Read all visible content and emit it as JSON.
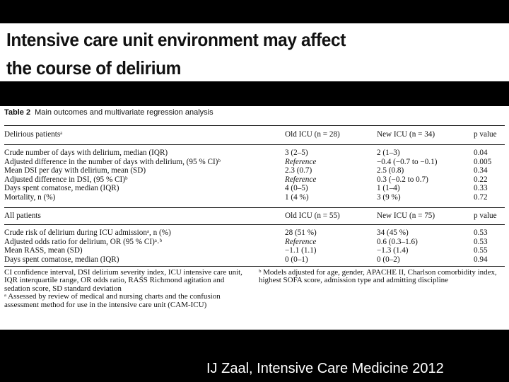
{
  "slide": {
    "title_line1": "Intensive care unit environment may affect",
    "title_line2": "the course of delirium",
    "citation": "IJ Zaal, Intensive Care Medicine 2012"
  },
  "table": {
    "caption_label": "Table 2",
    "caption_text": "Main outcomes and multivariate regression analysis",
    "section1": {
      "header": [
        "Delirious patientsᵃ",
        "Old ICU (n = 28)",
        "New ICU (n = 34)",
        "p value"
      ],
      "rows": [
        [
          "Crude number of days with delirium, median (IQR)",
          "3 (2–5)",
          "2 (1–3)",
          "0.04"
        ],
        [
          "  Adjusted difference in the number of days with delirium, (95 % CI)ᵇ",
          "Reference",
          "−0.4 (−0.7 to −0.1)",
          "0.005"
        ],
        [
          "Mean DSI per day with delirium, mean (SD)",
          "2.3 (0.7)",
          "2.5 (0.8)",
          "0.34"
        ],
        [
          "  Adjusted difference in DSI, (95 % CI)ᵇ",
          "Reference",
          "0.3 (−0.2 to 0.7)",
          "0.22"
        ],
        [
          "Days spent comatose, median (IQR)",
          "4 (0–5)",
          "1 (1–4)",
          "0.33"
        ],
        [
          "Mortality, n (%)",
          "1 (4 %)",
          "3 (9 %)",
          "0.72"
        ]
      ]
    },
    "section2": {
      "header": [
        "All patients",
        "Old ICU (n = 55)",
        "New ICU (n = 75)",
        "p value"
      ],
      "rows": [
        [
          "Crude risk of delirium during ICU admissionᵃ, n (%)",
          "28 (51 %)",
          "34 (45 %)",
          "0.53"
        ],
        [
          "Adjusted odds ratio for delirium, OR (95 % CI)ᵃ˒ᵇ",
          "Reference",
          "0.6 (0.3–1.6)",
          "0.53"
        ],
        [
          "Mean RASS, mean (SD)",
          "−1.1 (1.1)",
          "−1.3 (1.4)",
          "0.55"
        ],
        [
          "Days spent comatose, median (IQR)",
          "0 (0–1)",
          "0 (0–2)",
          "0.94"
        ]
      ]
    },
    "footnotes": {
      "abbrev": "CI confidence interval, DSI delirium severity index, ICU intensive care unit, IQR interquartile range, OR odds ratio, RASS Richmond agitation and sedation score, SD standard deviation",
      "note_a": "ᵃ Assessed by review of medical and nursing charts and the confusion assessment method for use in the intensive care unit (CAM-ICU)",
      "note_b": "ᵇ Models adjusted for age, gender, APACHE II, Charlson comorbidity index, highest SOFA score, admission type and admitting discipline"
    }
  }
}
